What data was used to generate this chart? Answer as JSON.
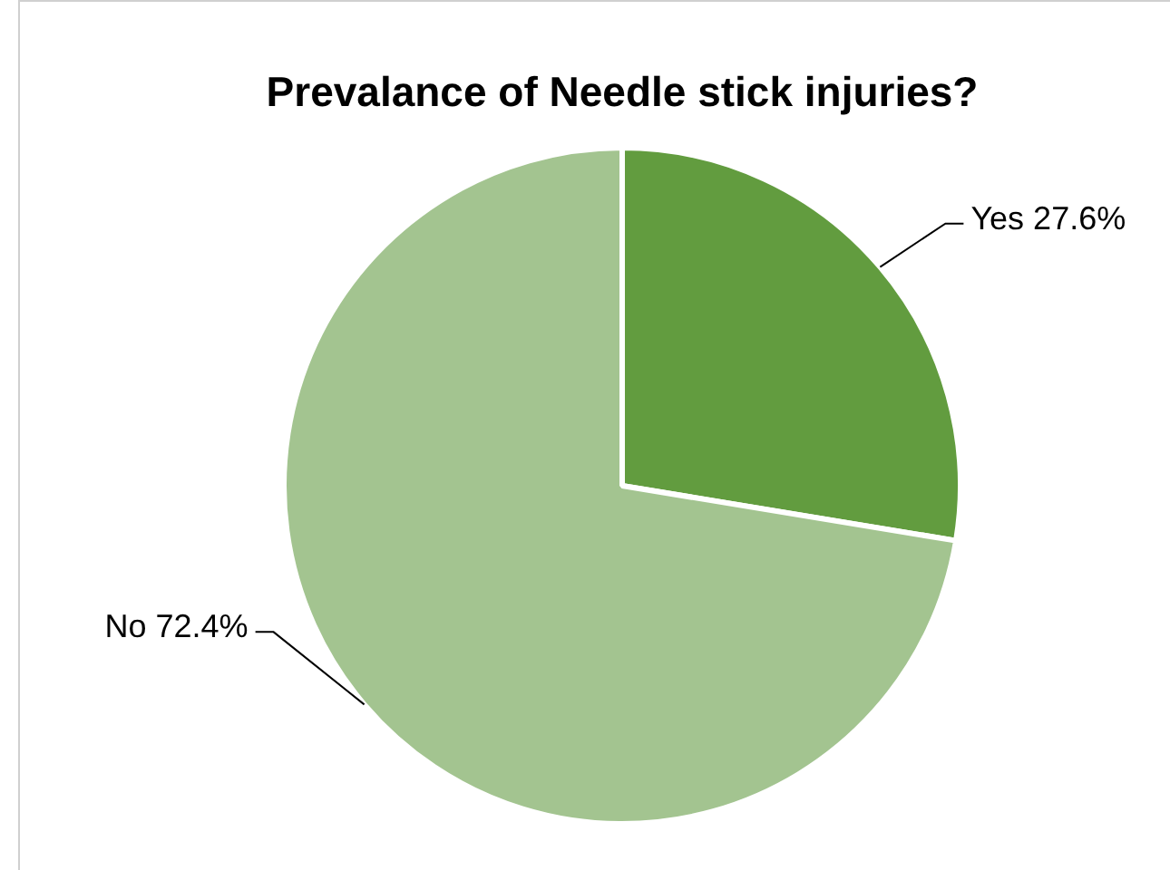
{
  "chart_data": {
    "type": "pie",
    "title": "Prevalance of Needle stick injuries?",
    "categories": [
      "Yes",
      "No"
    ],
    "values": [
      27.6,
      72.4
    ],
    "value_labels": [
      "27.6%",
      "72.4%"
    ],
    "colors": [
      "#629c3f",
      "#a3c490"
    ],
    "legend": false
  }
}
